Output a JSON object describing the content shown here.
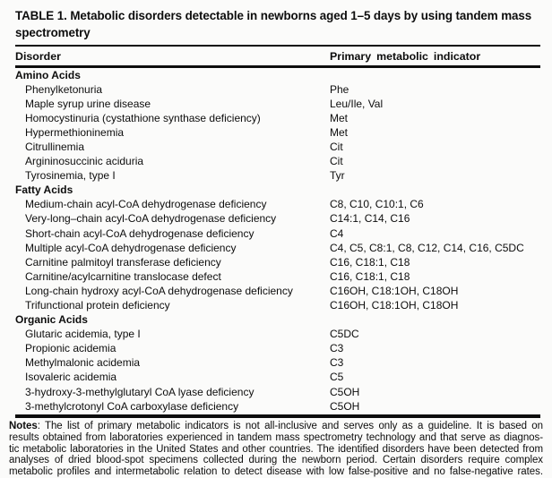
{
  "table": {
    "title": "TABLE 1. Metabolic disorders detectable in newborns aged 1–5 days by using tandem mass spectrometry",
    "columns": [
      "Disorder",
      "Primary metabolic indicator"
    ],
    "sections": [
      {
        "name": "Amino Acids",
        "rows": [
          {
            "disorder": "Phenylketonuria",
            "indicator": "Phe"
          },
          {
            "disorder": "Maple syrup urine disease",
            "indicator": "Leu/Ile, Val"
          },
          {
            "disorder": "Homocystinuria (cystathione synthase deficiency)",
            "indicator": "Met"
          },
          {
            "disorder": "Hypermethioninemia",
            "indicator": "Met"
          },
          {
            "disorder": "Citrullinemia",
            "indicator": "Cit"
          },
          {
            "disorder": "Argininosuccinic aciduria",
            "indicator": "Cit"
          },
          {
            "disorder": "Tyrosinemia, type I",
            "indicator": "Tyr"
          }
        ]
      },
      {
        "name": "Fatty Acids",
        "rows": [
          {
            "disorder": "Medium-chain acyl-CoA dehydrogenase deficiency",
            "indicator": "C8, C10, C10:1, C6"
          },
          {
            "disorder": "Very-long–chain acyl-CoA dehydrogenase deficiency",
            "indicator": "C14:1, C14, C16"
          },
          {
            "disorder": "Short-chain acyl-CoA dehydrogenase deficiency",
            "indicator": "C4"
          },
          {
            "disorder": "Multiple acyl-CoA dehydrogenase deficiency",
            "indicator": "C4, C5, C8:1, C8, C12, C14, C16, C5DC"
          },
          {
            "disorder": "Carnitine palmitoyl transferase deficiency",
            "indicator": "C16, C18:1, C18"
          },
          {
            "disorder": "Carnitine/acylcarnitine translocase defect",
            "indicator": "C16, C18:1, C18"
          },
          {
            "disorder": "Long-chain hydroxy acyl-CoA dehydrogenase deficiency",
            "indicator": "C16OH, C18:1OH, C18OH"
          },
          {
            "disorder": "Trifunctional protein deficiency",
            "indicator": "C16OH, C18:1OH, C18OH"
          }
        ]
      },
      {
        "name": "Organic Acids",
        "rows": [
          {
            "disorder": "Glutaric acidemia, type I",
            "indicator": "C5DC"
          },
          {
            "disorder": "Propionic acidemia",
            "indicator": "C3"
          },
          {
            "disorder": "Methylmalonic acidemia",
            "indicator": "C3"
          },
          {
            "disorder": "Isovaleric acidemia",
            "indicator": "C5"
          },
          {
            "disorder": "3-hydroxy-3-methylglutaryl CoA lyase deficiency",
            "indicator": "C5OH"
          },
          {
            "disorder": "3-methylcrotonyl CoA carboxylase deficiency",
            "indicator": "C5OH"
          }
        ]
      }
    ]
  },
  "notes": {
    "label": "Notes",
    "lines": [
      ": The list of primary metabolic indicators is not all-inclusive and serves only as a guideline. It is based on",
      "results obtained from laboratories experienced in tandem mass spectrometry technology and that serve as diagnos-",
      "tic metabolic laboratories in the United States and other countries. The identified disorders have been detected from",
      "analyses of dried blood-spot specimens collected during the newborn period. Certain disorders require complex",
      "metabolic profiles and intermetabolic relation to detect disease with low false-positive and no false-negative rates."
    ]
  },
  "colors": {
    "background": "#fbfbfa",
    "text": "#0d0d0d",
    "rule": "#0d0d0d"
  }
}
